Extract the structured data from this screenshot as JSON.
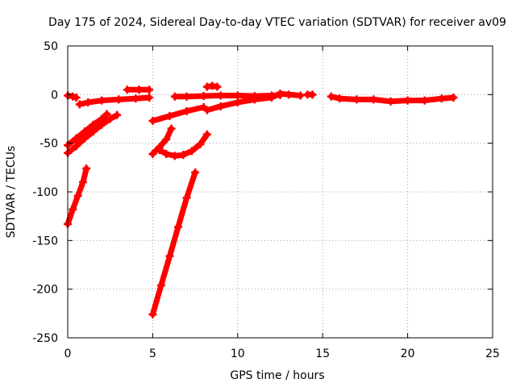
{
  "chart_data": {
    "type": "scatter",
    "title": "Day 175 of 2024, Sidereal Day-to-day VTEC variation (SDTVAR) for receiver av09",
    "xlabel": "GPS time / hours",
    "ylabel": "SDTVAR / TECUs",
    "xlim": [
      0,
      25
    ],
    "ylim": [
      -250,
      50
    ],
    "xticks": [
      0,
      5,
      10,
      15,
      20,
      25
    ],
    "yticks": [
      -250,
      -200,
      -150,
      -100,
      -50,
      0,
      50
    ],
    "grid": true,
    "marker_color": "#ff0000",
    "series": [
      {
        "values": [
          [
            0,
            -1
          ],
          [
            0.3,
            -2
          ],
          [
            0.5,
            -3
          ]
        ]
      },
      {
        "values": [
          [
            0.7,
            -10
          ],
          [
            1.2,
            -8
          ],
          [
            2,
            -6
          ],
          [
            3,
            -5
          ],
          [
            4,
            -4
          ],
          [
            4.8,
            -3
          ]
        ]
      },
      {
        "values": [
          [
            3.5,
            5
          ],
          [
            4.2,
            5
          ],
          [
            4.8,
            5
          ]
        ]
      },
      {
        "values": [
          [
            0,
            -52
          ],
          [
            0.5,
            -45
          ],
          [
            1,
            -38
          ],
          [
            1.5,
            -31
          ],
          [
            2,
            -25
          ],
          [
            2.3,
            -20
          ]
        ]
      },
      {
        "values": [
          [
            0,
            -60
          ],
          [
            0.5,
            -53
          ],
          [
            1,
            -45
          ],
          [
            1.5,
            -38
          ],
          [
            2,
            -31
          ],
          [
            2.5,
            -25
          ],
          [
            2.9,
            -21
          ]
        ]
      },
      {
        "values": [
          [
            0,
            -133
          ],
          [
            0.3,
            -118
          ],
          [
            0.6,
            -104
          ],
          [
            0.9,
            -90
          ],
          [
            1.1,
            -76
          ]
        ]
      },
      {
        "values": [
          [
            5,
            -27
          ],
          [
            6,
            -22
          ],
          [
            7,
            -17
          ],
          [
            8,
            -13
          ]
        ]
      },
      {
        "values": [
          [
            6.3,
            -2
          ],
          [
            7,
            -2
          ],
          [
            8,
            -1.5
          ],
          [
            9,
            -1
          ],
          [
            10,
            -1
          ],
          [
            11,
            -1.5
          ],
          [
            12,
            -1
          ],
          [
            12.5,
            -0.5
          ]
        ]
      },
      {
        "values": [
          [
            8.2,
            8
          ],
          [
            8.5,
            9
          ],
          [
            8.8,
            8
          ]
        ]
      },
      {
        "values": [
          [
            8.2,
            -16
          ],
          [
            9,
            -12
          ],
          [
            10,
            -8
          ],
          [
            11,
            -5
          ],
          [
            12,
            -3
          ],
          [
            12.5,
            1
          ],
          [
            13,
            0
          ],
          [
            13.7,
            -1
          ]
        ]
      },
      {
        "values": [
          [
            14.1,
            0
          ],
          [
            14.4,
            0
          ]
        ]
      },
      {
        "values": [
          [
            5,
            -61
          ],
          [
            5.4,
            -54
          ],
          [
            5.8,
            -46
          ],
          [
            6.1,
            -35
          ]
        ]
      },
      {
        "values": [
          [
            5.4,
            -57
          ],
          [
            5.8,
            -61
          ],
          [
            6.3,
            -63
          ],
          [
            6.8,
            -62
          ],
          [
            7.3,
            -58
          ],
          [
            7.8,
            -51
          ],
          [
            8.2,
            -41
          ]
        ]
      },
      {
        "values": [
          [
            5,
            -226
          ],
          [
            5.5,
            -196
          ],
          [
            6,
            -166
          ],
          [
            6.5,
            -136
          ],
          [
            7,
            -106
          ],
          [
            7.5,
            -80
          ]
        ]
      },
      {
        "values": [
          [
            15.5,
            -2
          ],
          [
            16,
            -4
          ],
          [
            17,
            -5
          ],
          [
            18,
            -5
          ],
          [
            19,
            -7
          ],
          [
            20,
            -6
          ],
          [
            21,
            -6
          ],
          [
            22,
            -4
          ],
          [
            22.7,
            -3
          ]
        ]
      }
    ]
  }
}
